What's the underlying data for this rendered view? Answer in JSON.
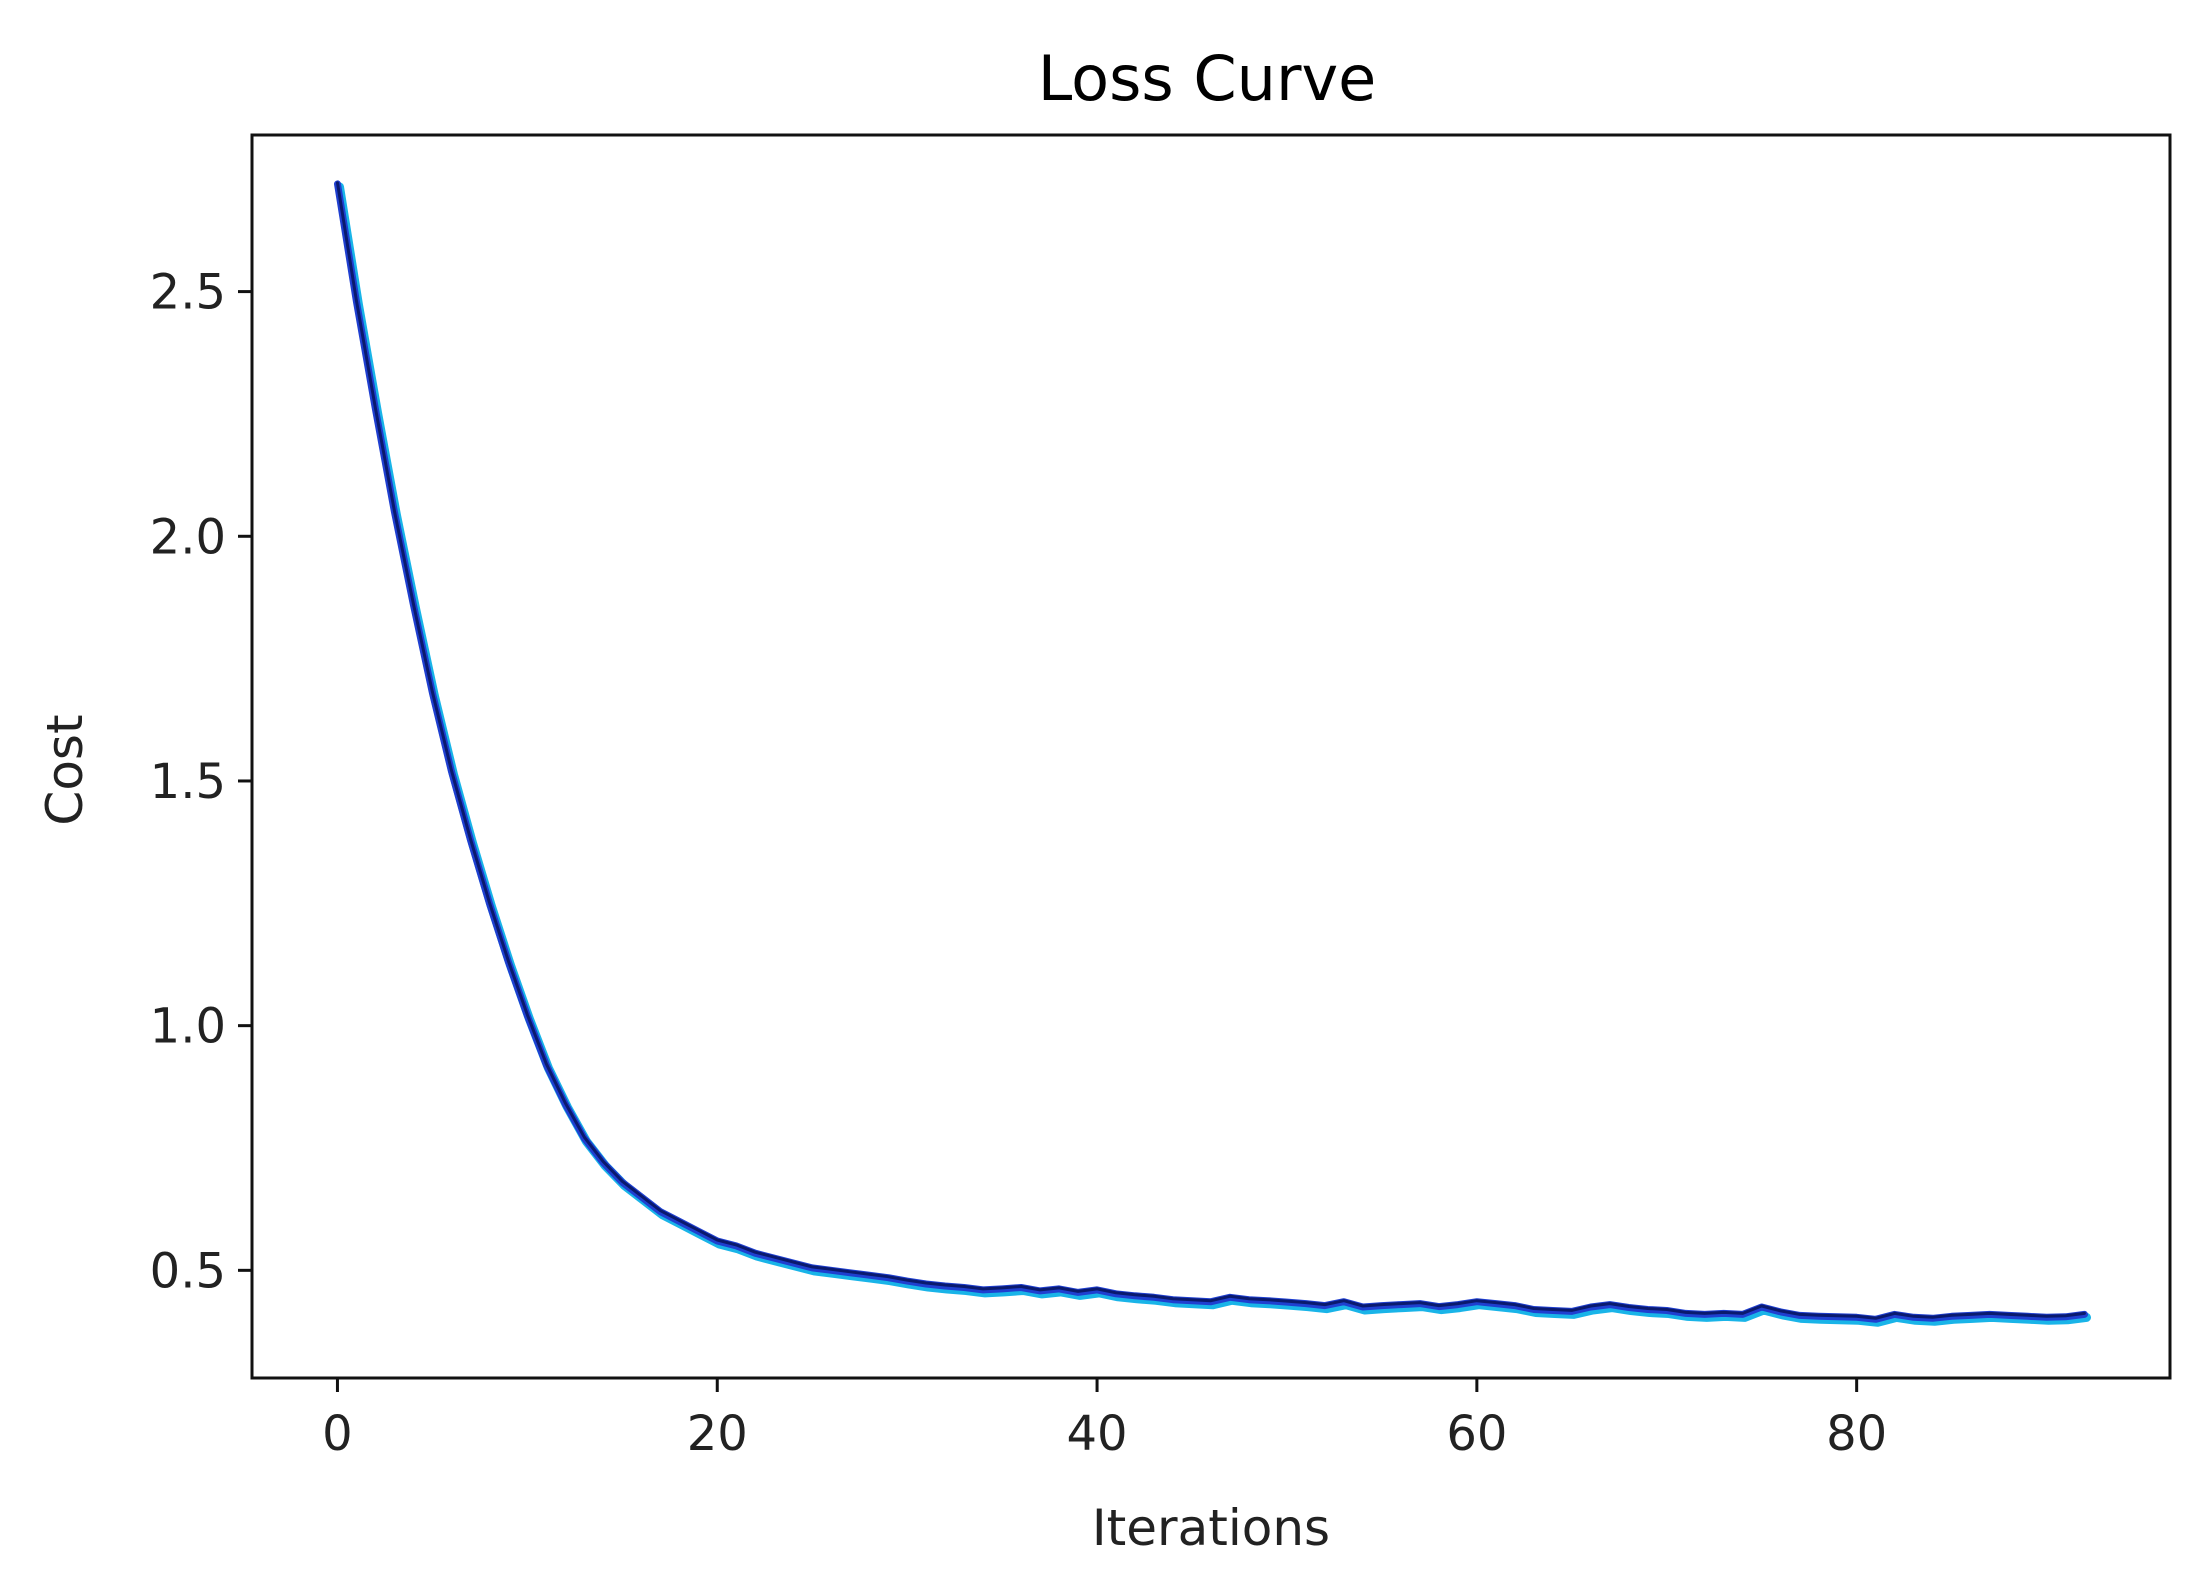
{
  "chart_data": {
    "type": "line",
    "title": "Loss Curve",
    "xlabel": "Iterations",
    "ylabel": "Cost",
    "xlim": [
      -4.5,
      96.5
    ],
    "ylim": [
      0.28,
      2.82
    ],
    "xticks": [
      0,
      20,
      40,
      60,
      80
    ],
    "yticks": [
      0.5,
      1.0,
      1.5,
      2.0,
      2.5
    ],
    "xtick_labels": [
      "0",
      "20",
      "40",
      "60",
      "80"
    ],
    "ytick_labels": [
      "0.5",
      "1.0",
      "1.5",
      "2.0",
      "2.5"
    ],
    "grid": false,
    "colors": {
      "line_main": "#1f3fd0",
      "line_highlight": "#19b4e8",
      "line_shadow": "#0a1a6e"
    },
    "series": [
      {
        "x": [
          0,
          1,
          2,
          3,
          4,
          5,
          6,
          7,
          8,
          9,
          10,
          11,
          12,
          13,
          14,
          15,
          16,
          17,
          18,
          19,
          20,
          21,
          22,
          23,
          24,
          25,
          26,
          27,
          28,
          29,
          30,
          31,
          32,
          33,
          34,
          35,
          36,
          37,
          38,
          39,
          40,
          41,
          42,
          43,
          44,
          45,
          46,
          47,
          48,
          49,
          50,
          51,
          52,
          53,
          54,
          55,
          56,
          57,
          58,
          59,
          60,
          61,
          62,
          63,
          64,
          65,
          66,
          67,
          68,
          69,
          70,
          71,
          72,
          73,
          74,
          75,
          76,
          77,
          78,
          79,
          80,
          81,
          82,
          83,
          84,
          85,
          86,
          87,
          88,
          89,
          90,
          91,
          92
        ],
        "values": [
          2.72,
          2.48,
          2.26,
          2.05,
          1.86,
          1.68,
          1.52,
          1.38,
          1.25,
          1.13,
          1.02,
          0.92,
          0.84,
          0.77,
          0.72,
          0.68,
          0.65,
          0.62,
          0.6,
          0.58,
          0.56,
          0.55,
          0.535,
          0.525,
          0.515,
          0.505,
          0.5,
          0.495,
          0.49,
          0.485,
          0.478,
          0.472,
          0.468,
          0.465,
          0.46,
          0.462,
          0.465,
          0.458,
          0.462,
          0.455,
          0.46,
          0.452,
          0.448,
          0.445,
          0.44,
          0.438,
          0.436,
          0.445,
          0.44,
          0.438,
          0.435,
          0.432,
          0.428,
          0.436,
          0.425,
          0.428,
          0.43,
          0.432,
          0.426,
          0.43,
          0.436,
          0.432,
          0.428,
          0.42,
          0.418,
          0.416,
          0.425,
          0.43,
          0.424,
          0.42,
          0.418,
          0.412,
          0.41,
          0.412,
          0.41,
          0.425,
          0.415,
          0.408,
          0.406,
          0.405,
          0.404,
          0.4,
          0.41,
          0.404,
          0.402,
          0.406,
          0.408,
          0.41,
          0.408,
          0.406,
          0.404,
          0.405,
          0.41
        ]
      }
    ]
  }
}
